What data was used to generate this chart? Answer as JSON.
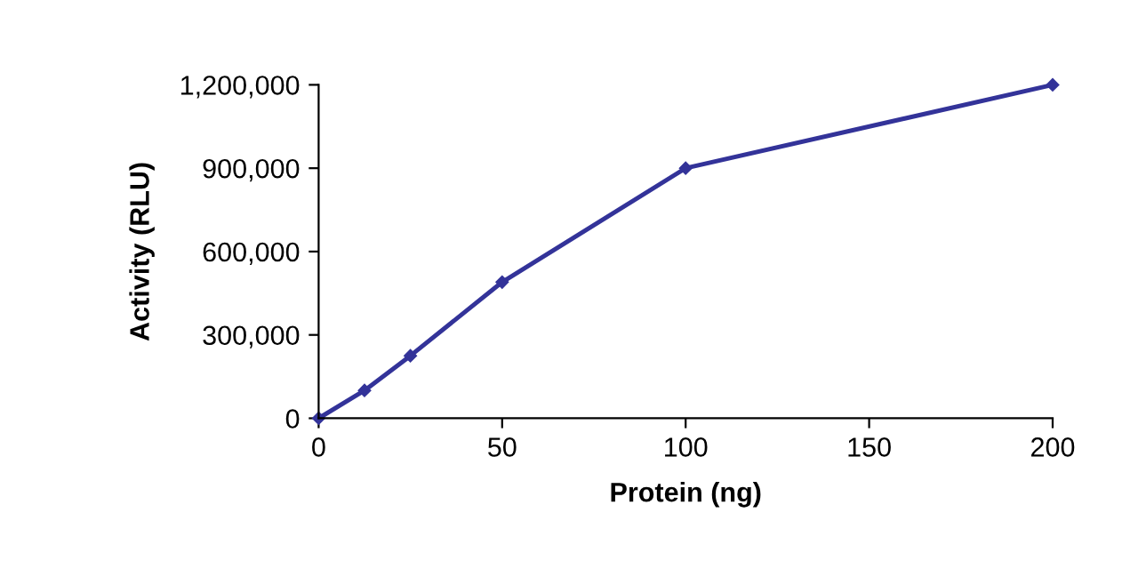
{
  "chart_data": {
    "type": "line",
    "xlabel": "Protein (ng)",
    "ylabel": "Activity (RLU)",
    "x": [
      0,
      12.5,
      25,
      50,
      100,
      200
    ],
    "series": [
      {
        "color": "#333399",
        "values": [
          0,
          100000,
          225000,
          490000,
          900000,
          1200000
        ]
      }
    ],
    "xlim": [
      0,
      200
    ],
    "xticks": [
      0,
      50,
      100,
      150,
      200
    ],
    "ylim": [
      0,
      1200000
    ],
    "yticks": [
      {
        "value": 0,
        "label": "0"
      },
      {
        "value": 300000,
        "label": "300,000"
      },
      {
        "value": 600000,
        "label": "600,000"
      },
      {
        "value": 900000,
        "label": "900,000"
      },
      {
        "value": 1200000,
        "label": "1,200,000"
      }
    ],
    "grid": false,
    "legend": false,
    "marker": "diamond",
    "line_style": "solid"
  }
}
